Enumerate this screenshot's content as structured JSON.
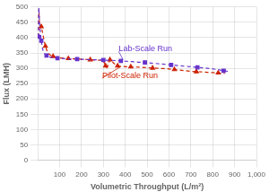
{
  "chart_data": {
    "type": "line",
    "xlabel": "Volumetric Throughput (L/m²)",
    "ylabel": "Flux (LMH)",
    "xlim": [
      0,
      1000
    ],
    "ylim": [
      0,
      500
    ],
    "xticks": [
      100,
      200,
      300,
      400,
      500,
      600,
      700,
      800,
      900,
      {
        "value": 1000,
        "label": "1,000"
      }
    ],
    "yticks": [
      0,
      50,
      100,
      150,
      200,
      250,
      300,
      350,
      400,
      450,
      500
    ],
    "grid": true,
    "series": [
      {
        "color": "#6633cc",
        "line_style": "dashed",
        "marker": "square",
        "x": [
          2,
          5,
          8,
          12,
          16,
          20,
          25,
          30,
          40,
          50,
          60,
          75,
          90,
          110,
          130,
          150,
          180,
          210,
          240,
          270,
          300,
          320,
          340,
          360,
          380,
          400,
          430,
          460,
          490,
          520,
          550,
          580,
          610,
          640,
          670,
          700,
          730,
          760,
          790,
          820,
          850,
          880
        ],
        "values": [
          403,
          498,
          445,
          415,
          390,
          370,
          355,
          348,
          342,
          338,
          336,
          334,
          333,
          332,
          331,
          330,
          330,
          329,
          328,
          328,
          327,
          326,
          326,
          325,
          324,
          323,
          322,
          320,
          319,
          317,
          315,
          313,
          311,
          309,
          307,
          305,
          303,
          301,
          299,
          296,
          292,
          289
        ]
      },
      {
        "color": "#cc2200",
        "line_style": "dashed",
        "marker": "triangle",
        "x": [
          2,
          5,
          8,
          12,
          16,
          20,
          25,
          30,
          35,
          42,
          50,
          60,
          70,
          85,
          100,
          120,
          140,
          165,
          190,
          215,
          240,
          265,
          290,
          305,
          310,
          315,
          320,
          325,
          330,
          338,
          345,
          355,
          365,
          375,
          390,
          405,
          425,
          450,
          475,
          500,
          525,
          550,
          575,
          600,
          625,
          650,
          675,
          700,
          725,
          750,
          775,
          800,
          825,
          855
        ],
        "values": [
          403,
          492,
          440,
          432,
          436,
          422,
          405,
          388,
          372,
          357,
          347,
          342,
          339,
          336,
          334,
          333,
          332,
          331,
          330,
          329,
          328,
          327,
          326,
          318,
          308,
          302,
          308,
          318,
          328,
          325,
          318,
          312,
          308,
          307,
          306,
          305,
          305,
          304,
          303,
          302,
          301,
          300,
          299,
          298,
          296,
          294,
          292,
          290,
          289,
          288,
          287,
          286,
          285,
          283
        ]
      }
    ],
    "annotations": [
      {
        "text": "Lab-Scale Run",
        "color": "#6633cc",
        "x": 390,
        "y": 328,
        "text_x": 370,
        "text_y": 355
      },
      {
        "text": "Pilot-Scale Run",
        "color": "#cc2200",
        "x": 380,
        "y": 306,
        "text_x": 295,
        "text_y": 268
      }
    ]
  }
}
